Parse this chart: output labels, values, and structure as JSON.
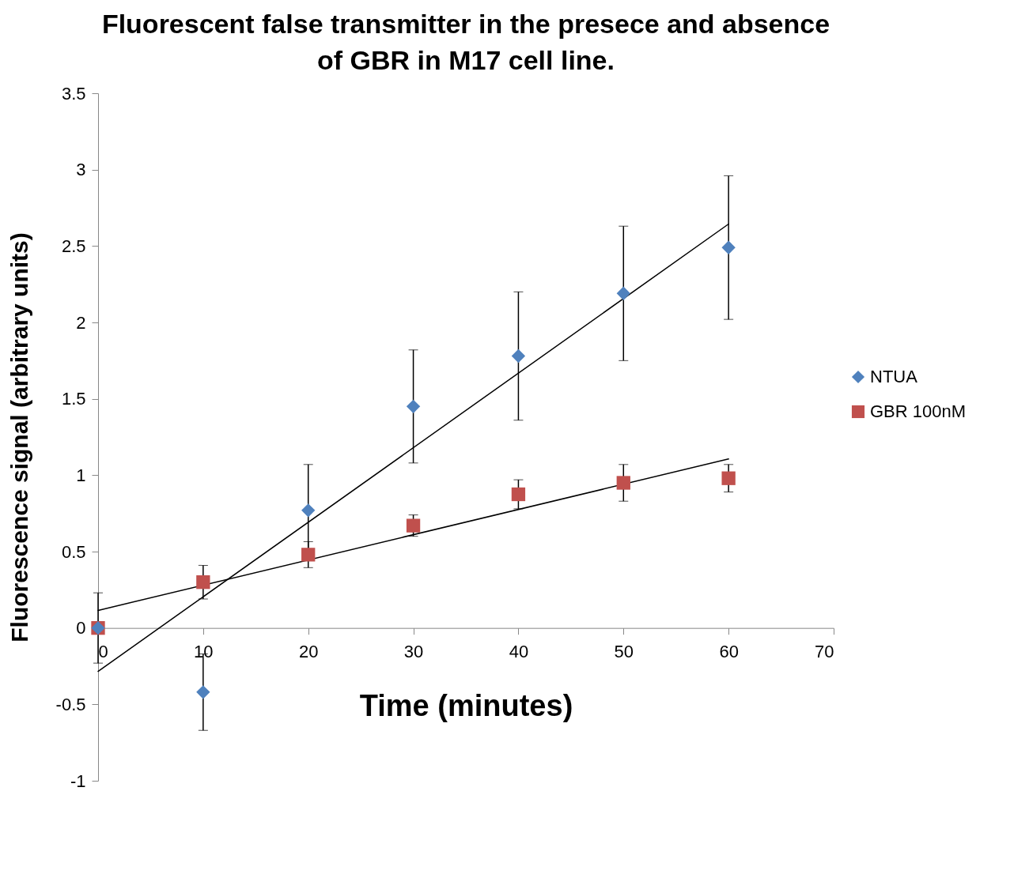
{
  "chart_data": {
    "type": "scatter",
    "title": "Fluorescent false transmitter in the presece and absence of GBR in M17 cell line.",
    "xlabel": "Time (minutes)",
    "ylabel": "Fluorescence signal (arbitrary units)",
    "xlim": [
      0,
      70
    ],
    "xticks": [
      0,
      10,
      20,
      30,
      40,
      50,
      60,
      70
    ],
    "ylim": [
      -1,
      3.5
    ],
    "yticks": [
      -1,
      -0.5,
      0,
      0.5,
      1,
      1.5,
      2,
      2.5,
      3,
      3.5
    ],
    "grid": false,
    "legend": "right",
    "series": [
      {
        "name": "NTUA",
        "color": "#4f81bd",
        "marker": "diamond",
        "x": [
          0,
          10,
          20,
          30,
          40,
          50,
          60
        ],
        "values": [
          0,
          -0.42,
          0.77,
          1.45,
          1.78,
          2.19,
          2.49
        ],
        "errors": [
          0.23,
          0.25,
          0.3,
          0.37,
          0.42,
          0.44,
          0.47
        ]
      },
      {
        "name": "GBR 100nM",
        "color": "#c0504d",
        "marker": "square",
        "x": [
          0,
          10,
          20,
          30,
          40,
          50,
          60
        ],
        "values": [
          0,
          0.3,
          0.48,
          0.67,
          0.875,
          0.95,
          0.98
        ],
        "errors": [
          null,
          0.11,
          0.085,
          0.07,
          0.095,
          0.12,
          0.09
        ]
      },
      {
        "type": "line",
        "color": "#000000",
        "marker": "none",
        "x": [
          0,
          60
        ],
        "values": [
          -0.284,
          2.644
        ]
      },
      {
        "type": "line",
        "color": "#000000",
        "marker": "none",
        "x": [
          0,
          60
        ],
        "values": [
          0.115,
          1.106
        ]
      }
    ]
  }
}
